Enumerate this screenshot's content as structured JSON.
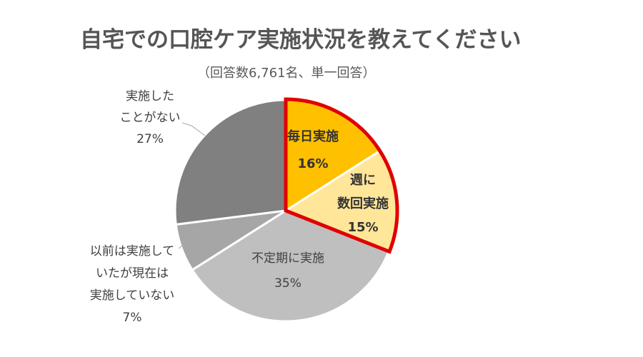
{
  "title": "自宅での口腔ケア実施状況を教えてください",
  "subtitle": "（回答数6,761名、単一回答）",
  "chart_data": {
    "type": "pie",
    "start_angle_deg": 0,
    "direction": "clockwise",
    "slices": [
      {
        "key": "daily",
        "label_lines": [
          "毎日実施"
        ],
        "percent_label": "16%",
        "value": 16,
        "color": "#FFC000",
        "highlight": true
      },
      {
        "key": "weekly",
        "label_lines": [
          "週に",
          "数回実施"
        ],
        "percent_label": "15%",
        "value": 15,
        "color": "#FFE699",
        "highlight": true
      },
      {
        "key": "irregular",
        "label_lines": [
          "不定期に実施"
        ],
        "percent_label": "35%",
        "value": 35,
        "color": "#BFBFBF",
        "highlight": false
      },
      {
        "key": "stopped",
        "label_lines": [
          "以前は実施して",
          "いたが現在は",
          "実施していない"
        ],
        "percent_label": "7%",
        "value": 7,
        "color": "#A6A6A6",
        "highlight": false
      },
      {
        "key": "never",
        "label_lines": [
          "実施した",
          "ことがない"
        ],
        "percent_label": "27%",
        "value": 27,
        "color": "#808080",
        "highlight": false
      }
    ],
    "highlight_color": "#E00000"
  }
}
